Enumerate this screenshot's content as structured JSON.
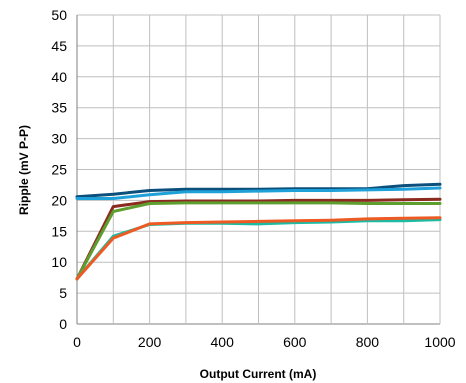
{
  "chart_data": {
    "type": "line",
    "title": "",
    "xlabel": "Output Current (mA)",
    "ylabel": "Ripple (mV P-P)",
    "xlim": [
      0,
      1000
    ],
    "ylim": [
      0,
      50
    ],
    "x_ticks": [
      0,
      200,
      400,
      600,
      800,
      1000
    ],
    "x_tick_labels": [
      "0",
      "200",
      "400",
      "600",
      "800",
      "1000"
    ],
    "y_ticks": [
      0,
      5,
      10,
      15,
      20,
      25,
      30,
      35,
      40,
      45,
      50
    ],
    "y_tick_labels": [
      "0",
      "5",
      "10",
      "15",
      "20",
      "25",
      "30",
      "35",
      "40",
      "45",
      "50"
    ],
    "x_grid": [
      0,
      100,
      200,
      300,
      400,
      500,
      600,
      700,
      800,
      900,
      1000
    ],
    "grid": true,
    "legend": "none",
    "x": [
      0,
      100,
      200,
      300,
      400,
      500,
      600,
      700,
      800,
      900,
      1000
    ],
    "series": [
      {
        "color": "#0b4f7c",
        "values": [
          20.6,
          21.0,
          21.6,
          21.8,
          21.8,
          21.8,
          21.9,
          21.9,
          21.9,
          22.4,
          22.6
        ]
      },
      {
        "color": "#1ea0d8",
        "values": [
          20.3,
          20.3,
          20.9,
          21.4,
          21.4,
          21.5,
          21.6,
          21.6,
          21.7,
          21.8,
          22.0
        ]
      },
      {
        "color": "#8b2a1e",
        "values": [
          7.3,
          19.0,
          19.8,
          19.9,
          19.9,
          19.9,
          20.0,
          20.0,
          20.0,
          20.1,
          20.2
        ]
      },
      {
        "color": "#5e9e2e",
        "values": [
          7.3,
          18.2,
          19.5,
          19.6,
          19.6,
          19.6,
          19.6,
          19.6,
          19.5,
          19.5,
          19.5
        ]
      },
      {
        "color": "#1dbba3",
        "values": [
          7.3,
          14.2,
          16.1,
          16.3,
          16.3,
          16.2,
          16.4,
          16.5,
          16.7,
          16.7,
          16.9
        ]
      },
      {
        "color": "#ee5a24",
        "values": [
          7.3,
          13.9,
          16.2,
          16.4,
          16.5,
          16.6,
          16.7,
          16.8,
          17.0,
          17.1,
          17.2
        ]
      }
    ]
  }
}
